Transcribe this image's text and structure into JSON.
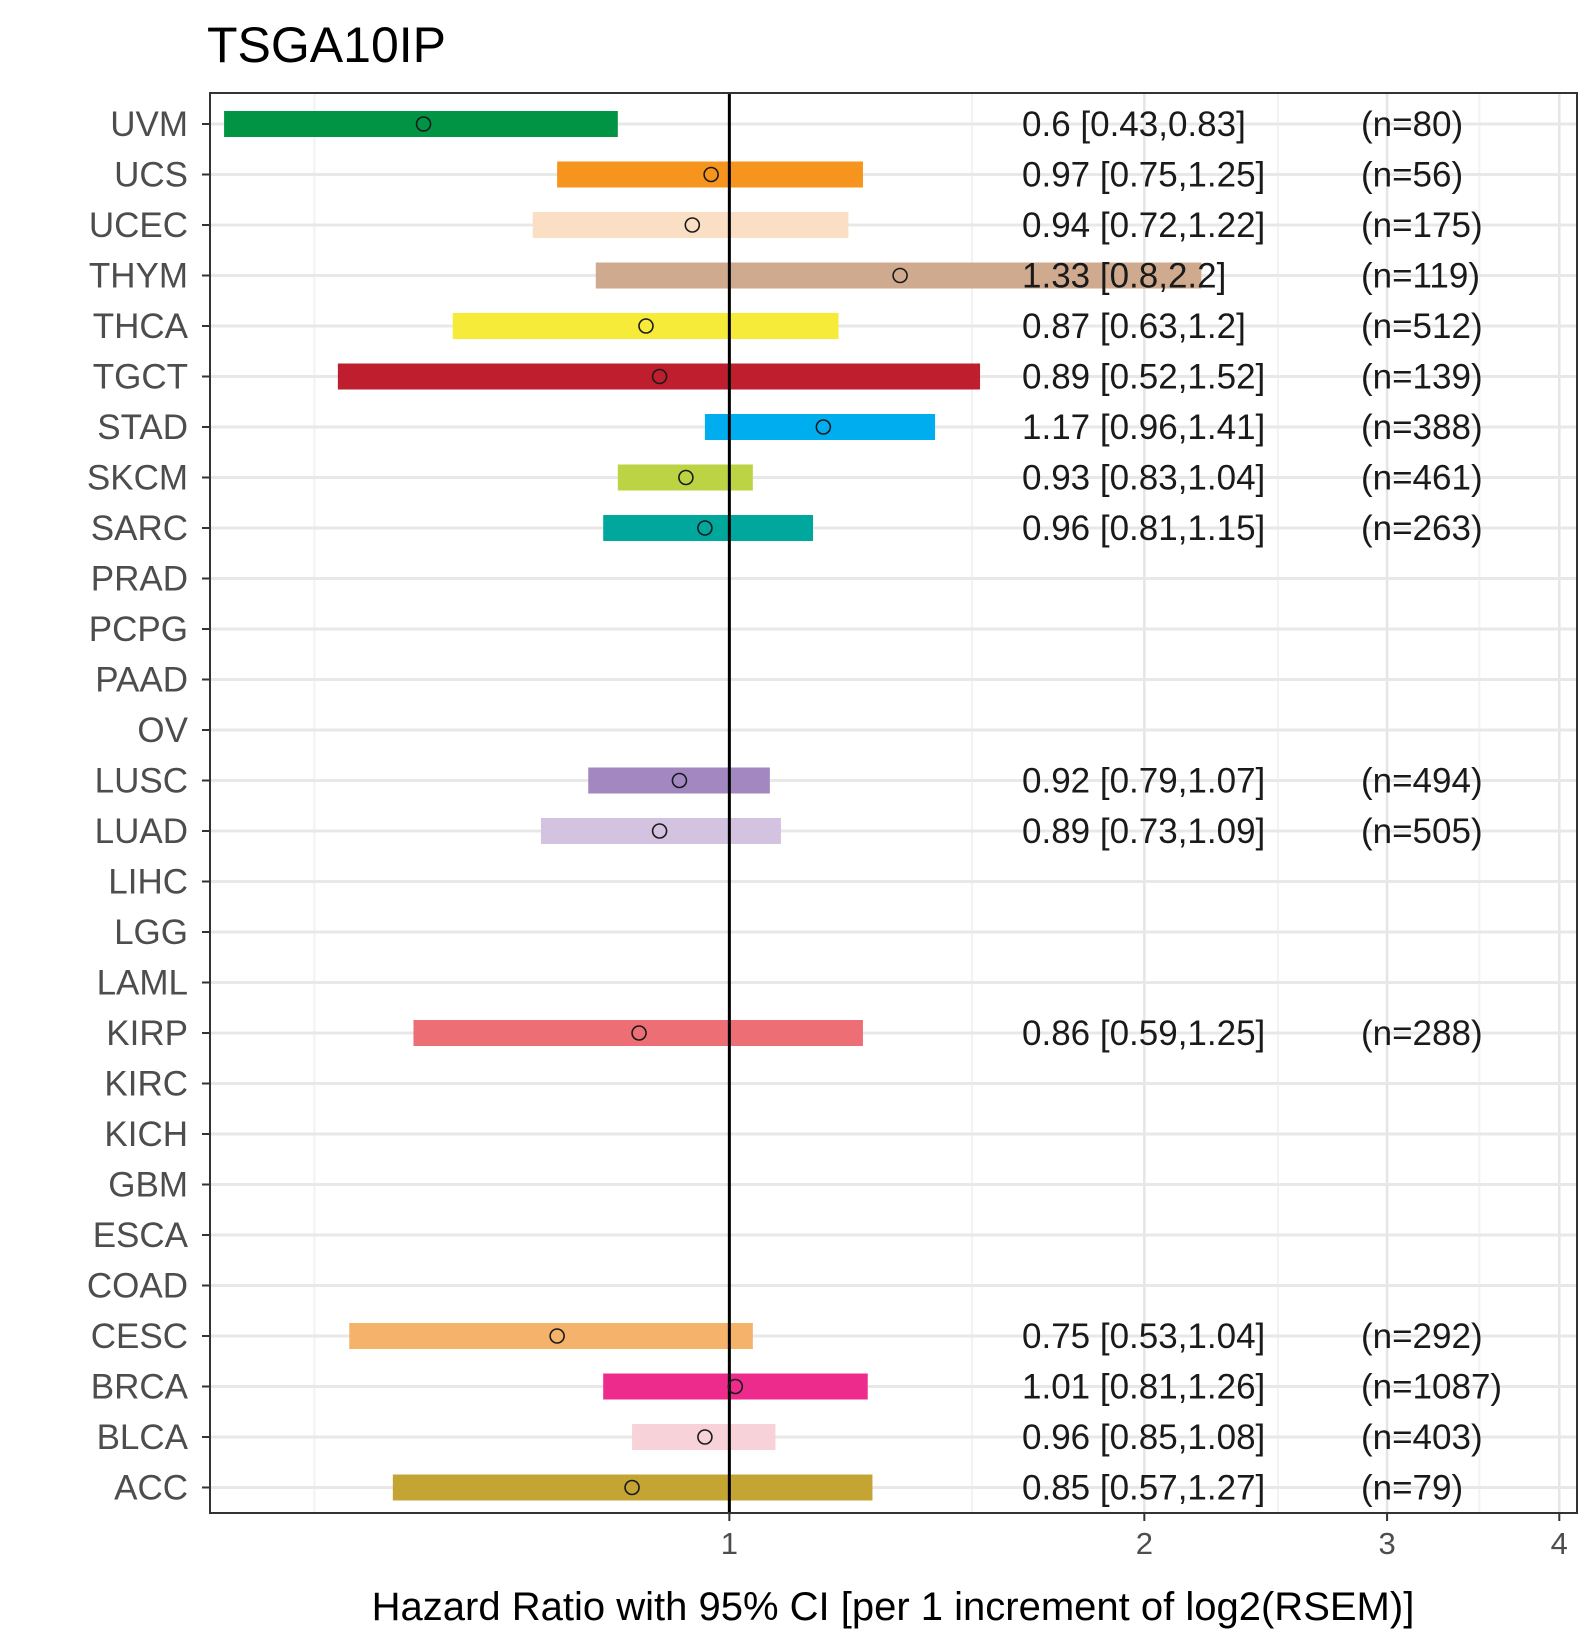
{
  "chart_data": {
    "type": "forest",
    "title": "TSGA10IP",
    "xlabel": "Hazard Ratio with 95% CI [per 1 increment of log2(RSEM)]",
    "ylabel": "",
    "x_scale": "log2",
    "xlim": [
      0.42,
      4.12
    ],
    "x_ticks": [
      1,
      2,
      3,
      4
    ],
    "x_tick_labels": [
      "1",
      "2",
      "3",
      "4"
    ],
    "reference_line": 1,
    "grid": true,
    "rows": [
      {
        "category": "UVM",
        "hr": 0.6,
        "lo": 0.43,
        "hi": 0.83,
        "label": "0.6 [0.43,0.83]",
        "n": "(n=80)",
        "color": "#009444"
      },
      {
        "category": "UCS",
        "hr": 0.97,
        "lo": 0.75,
        "hi": 1.25,
        "label": "0.97 [0.75,1.25]",
        "n": "(n=56)",
        "color": "#f7941d"
      },
      {
        "category": "UCEC",
        "hr": 0.94,
        "lo": 0.72,
        "hi": 1.22,
        "label": "0.94 [0.72,1.22]",
        "n": "(n=175)",
        "color": "#fbdfc4"
      },
      {
        "category": "THYM",
        "hr": 1.33,
        "lo": 0.8,
        "hi": 2.2,
        "label": "1.33 [0.8,2.2]",
        "n": "(n=119)",
        "color": "#cfaa8e"
      },
      {
        "category": "THCA",
        "hr": 0.87,
        "lo": 0.63,
        "hi": 1.2,
        "label": "0.87 [0.63,1.2]",
        "n": "(n=512)",
        "color": "#f6eb38"
      },
      {
        "category": "TGCT",
        "hr": 0.89,
        "lo": 0.52,
        "hi": 1.52,
        "label": "0.89 [0.52,1.52]",
        "n": "(n=139)",
        "color": "#be1e2d"
      },
      {
        "category": "STAD",
        "hr": 1.17,
        "lo": 0.96,
        "hi": 1.41,
        "label": "1.17 [0.96,1.41]",
        "n": "(n=388)",
        "color": "#00aeef"
      },
      {
        "category": "SKCM",
        "hr": 0.93,
        "lo": 0.83,
        "hi": 1.04,
        "label": "0.93 [0.83,1.04]",
        "n": "(n=461)",
        "color": "#bcd444"
      },
      {
        "category": "SARC",
        "hr": 0.96,
        "lo": 0.81,
        "hi": 1.15,
        "label": "0.96 [0.81,1.15]",
        "n": "(n=263)",
        "color": "#00a79d"
      },
      {
        "category": "PRAD"
      },
      {
        "category": "PCPG"
      },
      {
        "category": "PAAD"
      },
      {
        "category": "OV"
      },
      {
        "category": "LUSC",
        "hr": 0.92,
        "lo": 0.79,
        "hi": 1.07,
        "label": "0.92 [0.79,1.07]",
        "n": "(n=494)",
        "color": "#a287c1"
      },
      {
        "category": "LUAD",
        "hr": 0.89,
        "lo": 0.73,
        "hi": 1.09,
        "label": "0.89 [0.73,1.09]",
        "n": "(n=505)",
        "color": "#d3c3e0"
      },
      {
        "category": "LIHC"
      },
      {
        "category": "LGG"
      },
      {
        "category": "LAML"
      },
      {
        "category": "KIRP",
        "hr": 0.86,
        "lo": 0.59,
        "hi": 1.25,
        "label": "0.86 [0.59,1.25]",
        "n": "(n=288)",
        "color": "#ed6f75"
      },
      {
        "category": "KIRC"
      },
      {
        "category": "KICH"
      },
      {
        "category": "GBM"
      },
      {
        "category": "ESCA"
      },
      {
        "category": "COAD"
      },
      {
        "category": "CESC",
        "hr": 0.75,
        "lo": 0.53,
        "hi": 1.04,
        "label": "0.75 [0.53,1.04]",
        "n": "(n=292)",
        "color": "#f5b26b"
      },
      {
        "category": "BRCA",
        "hr": 1.01,
        "lo": 0.81,
        "hi": 1.26,
        "label": "1.01 [0.81,1.26]",
        "n": "(n=1087)",
        "color": "#ec2b8c"
      },
      {
        "category": "BLCA",
        "hr": 0.96,
        "lo": 0.85,
        "hi": 1.08,
        "label": "0.96 [0.85,1.08]",
        "n": "(n=403)",
        "color": "#f8d2d9"
      },
      {
        "category": "ACC",
        "hr": 0.85,
        "lo": 0.57,
        "hi": 1.27,
        "label": "0.85 [0.57,1.27]",
        "n": "(n=79)",
        "color": "#c4a432"
      }
    ]
  }
}
